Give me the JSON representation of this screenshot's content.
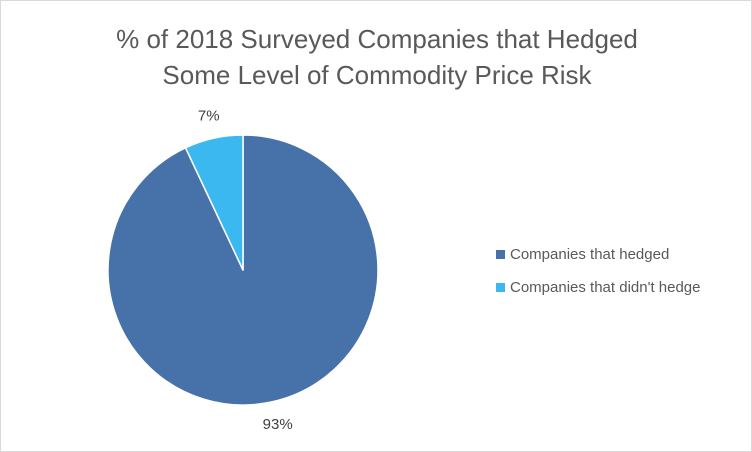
{
  "chart_data": {
    "type": "pie",
    "title_lines": [
      "% of 2018 Surveyed Companies that Hedged",
      "Some Level of Commodity Price Risk"
    ],
    "slices": [
      {
        "label": "Companies that hedged",
        "value": 93,
        "display": "93%",
        "color": "#4672a9"
      },
      {
        "label": "Companies that didn't hedge",
        "value": 7,
        "display": "7%",
        "color": "#3cb8f0"
      }
    ],
    "legend_position": "right"
  }
}
